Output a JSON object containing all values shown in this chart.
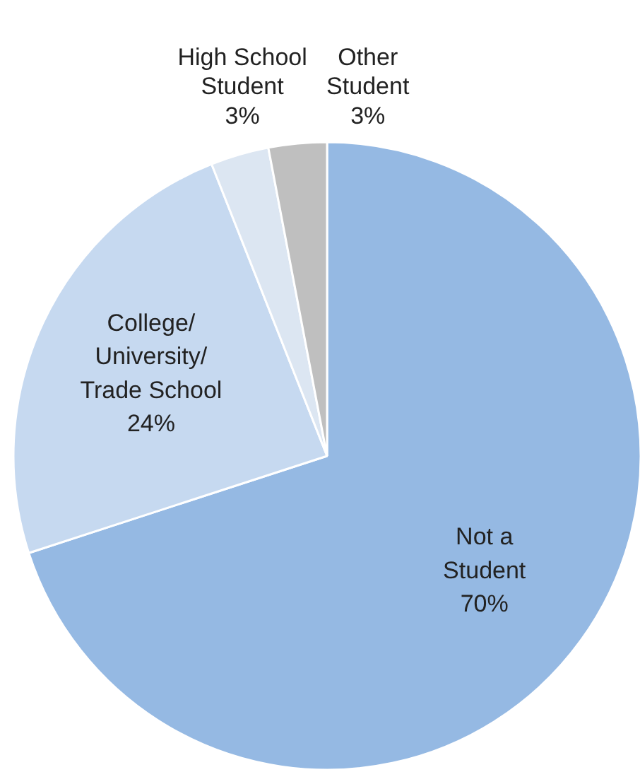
{
  "chart_data": {
    "type": "pie",
    "categories": [
      "Not a\nStudent",
      "College/\nUniversity/\nTrade School",
      "High School\nStudent",
      "Other\nStudent"
    ],
    "values": [
      70,
      24,
      3,
      3
    ],
    "value_labels": [
      "70%",
      "24%",
      "3%",
      "3%"
    ],
    "colors": [
      "#95b9e3",
      "#c6d9f0",
      "#dce6f2",
      "#bfbfbf"
    ]
  }
}
